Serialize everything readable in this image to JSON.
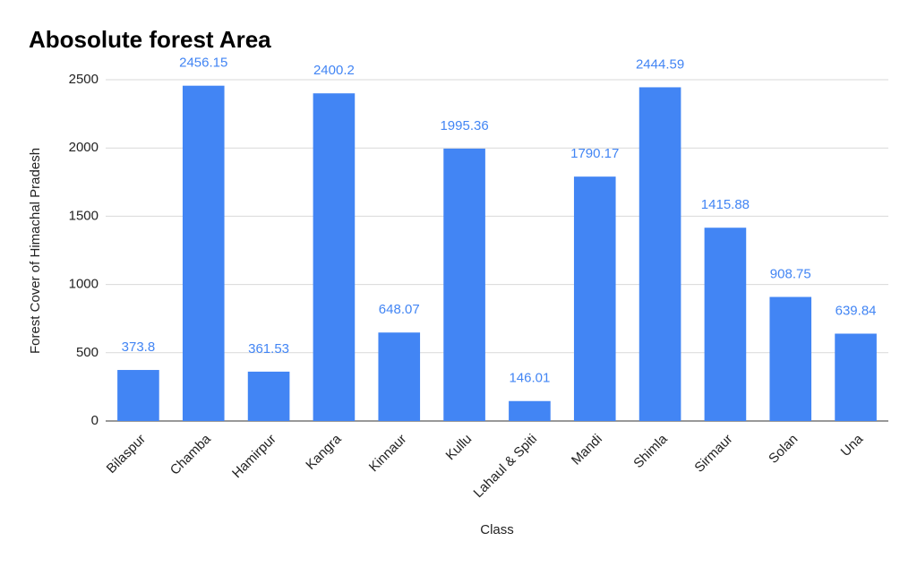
{
  "chart_data": {
    "type": "bar",
    "title": "Abosolute forest Area",
    "x_label": "Class",
    "y_label": "Forest Cover of Himachal Pradesh",
    "categories": [
      "Bilaspur",
      "Chamba",
      "Hamirpur",
      "Kangra",
      "Kinnaur",
      "Kullu",
      "Lahaul & Spiti",
      "Mandi",
      "Shimla",
      "Sirmaur",
      "Solan",
      "Una"
    ],
    "values": [
      373.8,
      2456.15,
      361.53,
      2400.2,
      648.07,
      1995.36,
      146.01,
      1790.17,
      2444.59,
      1415.88,
      908.75,
      639.84
    ],
    "color": "#4285f4",
    "ylim": [
      0,
      2500
    ],
    "yticks": [
      0,
      500,
      1000,
      1500,
      2000,
      2500
    ],
    "grid": true
  }
}
